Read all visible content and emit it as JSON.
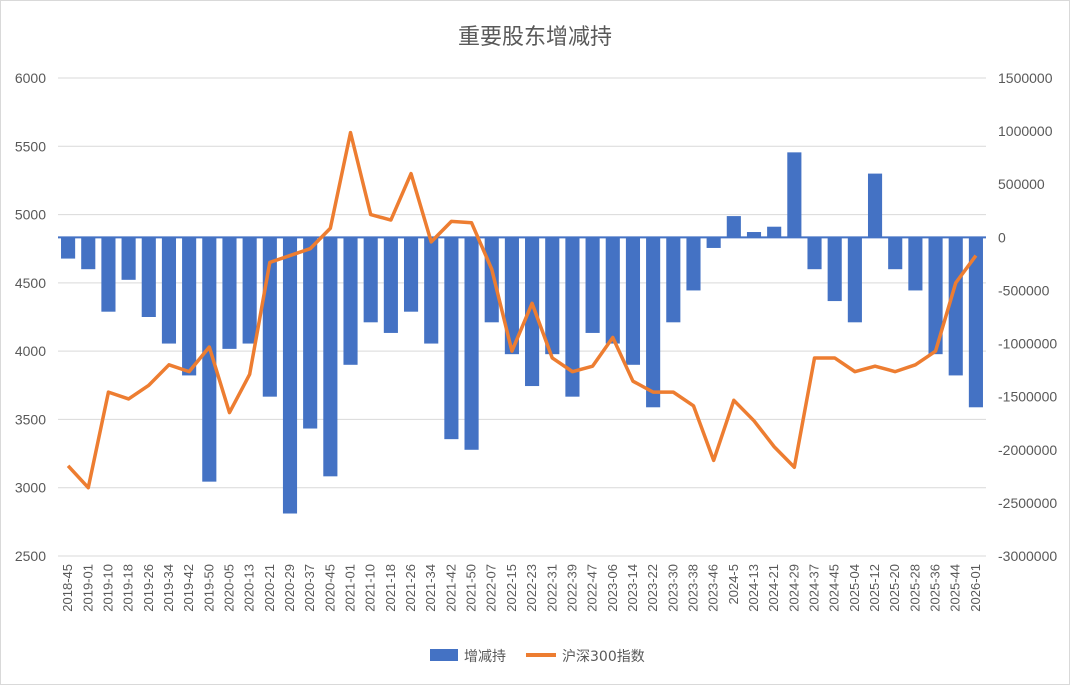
{
  "chart_data": {
    "type": "bar+line",
    "title": "重要股东增减持",
    "y_left": {
      "min": 2500,
      "max": 6000,
      "ticks": [
        "2500",
        "3000",
        "3500",
        "4000",
        "4500",
        "5000",
        "5500",
        "6000"
      ]
    },
    "y_right": {
      "min": -3000000,
      "max": 1500000,
      "ticks": [
        "-3000000",
        "-2500000",
        "-2000000",
        "-1500000",
        "-1000000",
        "-500000",
        "0",
        "500000",
        "1000000",
        "1500000"
      ]
    },
    "x_ticks": [
      "2018-45",
      "2019-01",
      "2019-10",
      "2019-18",
      "2019-26",
      "2019-34",
      "2019-42",
      "2019-50",
      "2020-05",
      "2020-13",
      "2020-21",
      "2020-29",
      "2020-37",
      "2020-45",
      "2021-01",
      "2021-10",
      "2021-18",
      "2021-26",
      "2021-34",
      "2021-42",
      "2021-50",
      "2022-07",
      "2022-15",
      "2022-23",
      "2022-31",
      "2022-39",
      "2022-47",
      "2023-06",
      "2023-14",
      "2023-22",
      "2023-30",
      "2023-38",
      "2023-46",
      "2024-5",
      "2024-13",
      "2024-21",
      "2024-29",
      "2024-37",
      "2024-45",
      "2025-04",
      "2025-12",
      "2025-20",
      "2025-28",
      "2025-36",
      "2025-44",
      "2026-01"
    ],
    "series": [
      {
        "name": "增减持",
        "type": "bar",
        "axis": "right",
        "color": "#4472C4",
        "x_index": [
          0,
          1,
          2,
          3,
          4,
          5,
          6,
          7,
          8,
          9,
          10,
          11,
          12,
          13,
          14,
          15,
          16,
          17,
          18,
          19,
          20,
          21,
          22,
          23,
          24,
          25,
          26,
          27,
          28,
          29,
          30,
          31,
          32,
          33,
          34,
          35,
          36,
          37,
          38,
          39,
          40,
          41,
          42,
          43,
          44,
          45
        ],
        "values": [
          -200000,
          -300000,
          -700000,
          -400000,
          -750000,
          -1000000,
          -1300000,
          -2300000,
          -1050000,
          -1000000,
          -1500000,
          -2600000,
          -1800000,
          -2250000,
          -1200000,
          -800000,
          -900000,
          -700000,
          -1000000,
          -1900000,
          -2000000,
          -800000,
          -1100000,
          -1400000,
          -1100000,
          -1500000,
          -900000,
          -1000000,
          -1200000,
          -1600000,
          -800000,
          -500000,
          -100000,
          200000,
          50000,
          100000,
          800000,
          -300000,
          -600000,
          -800000,
          600000,
          -300000,
          -500000,
          -1100000,
          -1300000,
          -1600000
        ]
      },
      {
        "name": "沪深300指数",
        "type": "line",
        "axis": "left",
        "color": "#ED7D31",
        "x_index": [
          0,
          1,
          2,
          3,
          4,
          5,
          6,
          7,
          8,
          9,
          10,
          11,
          12,
          13,
          14,
          15,
          16,
          17,
          18,
          19,
          20,
          21,
          22,
          23,
          24,
          25,
          26,
          27,
          28,
          29,
          30,
          31,
          32,
          33,
          34,
          35,
          36,
          37,
          38,
          39,
          40,
          41,
          42,
          43,
          44,
          45
        ],
        "values": [
          3160,
          3000,
          3700,
          3650,
          3750,
          3900,
          3850,
          4030,
          3550,
          3830,
          4650,
          4700,
          4750,
          4900,
          5600,
          5000,
          4960,
          5300,
          4800,
          4950,
          4940,
          4600,
          4000,
          4350,
          3950,
          3850,
          3890,
          4100,
          3780,
          3700,
          3700,
          3600,
          3200,
          3640,
          3490,
          3300,
          3150,
          3950,
          3950,
          3850,
          3890,
          3850,
          3900,
          4000,
          4500,
          4700
        ]
      }
    ],
    "legend": {
      "position": "bottom"
    }
  }
}
